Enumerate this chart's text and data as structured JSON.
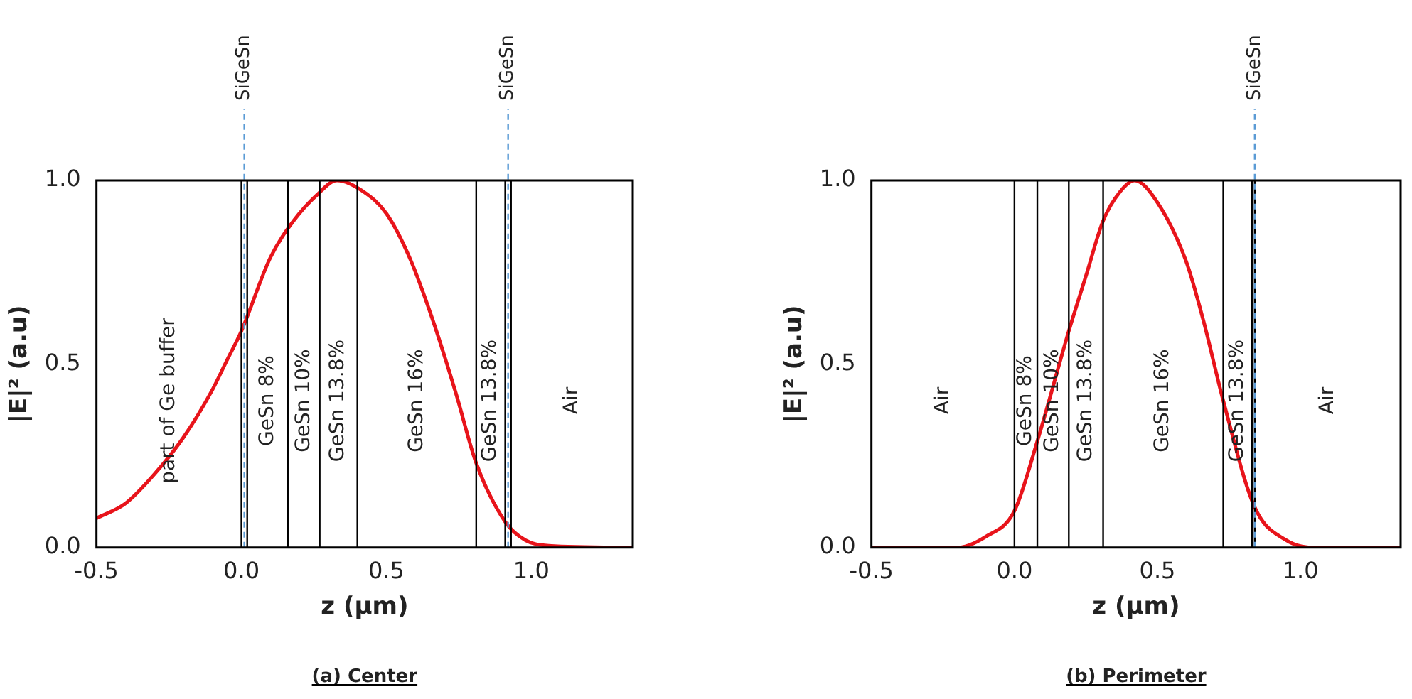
{
  "chart_data": [
    {
      "type": "line",
      "title": "(a) Center",
      "xlabel": "z (μm)",
      "ylabel": "|E|² (a.u)",
      "xlim": [
        -0.5,
        1.35
      ],
      "xticks": [
        {
          "value": -0.5,
          "label": "-0.5"
        },
        {
          "value": 0,
          "label": "0.0"
        },
        {
          "value": 0.5,
          "label": "0.5"
        },
        {
          "value": 1,
          "label": "1.0"
        }
      ],
      "ylim": [
        0,
        1
      ],
      "yticks": [
        {
          "value": 0,
          "label": "0.0"
        },
        {
          "value": 0.5,
          "label": "0.5"
        },
        {
          "value": 1,
          "label": "1.0"
        }
      ],
      "grid": false,
      "legend": false,
      "series": [
        {
          "color": "#e8141b",
          "x": [
            -0.5,
            -0.4,
            -0.3,
            -0.2,
            -0.1,
            -0.05,
            0,
            0.1,
            0.18,
            0.26,
            0.33,
            0.42,
            0.5,
            0.58,
            0.66,
            0.74,
            0.81,
            0.91,
            0.98,
            1.06,
            1.35
          ],
          "values": [
            0.08,
            0.12,
            0.2,
            0.3,
            0.43,
            0.51,
            0.59,
            0.79,
            0.89,
            0.96,
            1.0,
            0.97,
            0.91,
            0.79,
            0.62,
            0.42,
            0.23,
            0.07,
            0.02,
            0.005,
            0
          ]
        }
      ],
      "ref_lines": [
        {
          "axis": "x",
          "value": 0,
          "color": "#000000"
        },
        {
          "axis": "x",
          "value": 0.02,
          "color": "#000000"
        },
        {
          "axis": "x",
          "value": 0.16,
          "color": "#000000"
        },
        {
          "axis": "x",
          "value": 0.27,
          "color": "#000000"
        },
        {
          "axis": "x",
          "value": 0.4,
          "color": "#000000"
        },
        {
          "axis": "x",
          "value": 0.81,
          "color": "#000000"
        },
        {
          "axis": "x",
          "value": 0.91,
          "color": "#000000"
        },
        {
          "axis": "x",
          "value": 0.93,
          "color": "#000000"
        },
        {
          "axis": "x",
          "value": 0.01,
          "label": "SiGeSn",
          "color": "#5b9bd5",
          "line_style": "dashed"
        },
        {
          "axis": "x",
          "value": 0.92,
          "label": "SiGeSn",
          "color": "#5b9bd5",
          "line_style": "dashed"
        }
      ],
      "annotations": [
        "part of Ge buffer",
        "GeSn 8%",
        "GeSn 10%",
        "GeSn 13.8%",
        "GeSn 16%",
        "GeSn 13.8%",
        "Air"
      ]
    },
    {
      "type": "line",
      "title": "(b) Perimeter",
      "xlabel": "z (μm)",
      "ylabel": "|E|² (a.u)",
      "xlim": [
        -0.5,
        1.35
      ],
      "xticks": [
        {
          "value": -0.5,
          "label": "-0.5"
        },
        {
          "value": 0,
          "label": "0.0"
        },
        {
          "value": 0.5,
          "label": "0.5"
        },
        {
          "value": 1,
          "label": "1.0"
        }
      ],
      "ylim": [
        0,
        1
      ],
      "yticks": [
        {
          "value": 0,
          "label": "0.0"
        },
        {
          "value": 0.5,
          "label": "0.5"
        },
        {
          "value": 1,
          "label": "1.0"
        }
      ],
      "grid": false,
      "legend": false,
      "series": [
        {
          "color": "#e8141b",
          "x": [
            -0.5,
            -0.3,
            -0.2,
            -0.1,
            0,
            0.08,
            0.19,
            0.25,
            0.31,
            0.37,
            0.42,
            0.5,
            0.6,
            0.66,
            0.73,
            0.84,
            0.95,
            1.05,
            1.35
          ],
          "values": [
            0,
            0,
            0,
            0.03,
            0.1,
            0.29,
            0.59,
            0.74,
            0.89,
            0.97,
            1.0,
            0.94,
            0.78,
            0.62,
            0.4,
            0.11,
            0.02,
            0,
            0
          ]
        }
      ],
      "ref_lines": [
        {
          "axis": "x",
          "value": 0,
          "color": "#000000"
        },
        {
          "axis": "x",
          "value": 0.08,
          "color": "#000000"
        },
        {
          "axis": "x",
          "value": 0.19,
          "color": "#000000"
        },
        {
          "axis": "x",
          "value": 0.31,
          "color": "#000000"
        },
        {
          "axis": "x",
          "value": 0.73,
          "color": "#000000"
        },
        {
          "axis": "x",
          "value": 0.83,
          "color": "#000000"
        },
        {
          "axis": "x",
          "value": 0.84,
          "color": "#000000"
        },
        {
          "axis": "x",
          "value": 0.84,
          "label": "SiGeSn",
          "color": "#5b9bd5",
          "line_style": "dashed"
        }
      ],
      "annotations": [
        "Air",
        "GeSn 8%",
        "GeSn 10%",
        "GeSn 13.8%",
        "GeSn 16%",
        "GeSn 13.8%",
        "Air"
      ]
    }
  ]
}
